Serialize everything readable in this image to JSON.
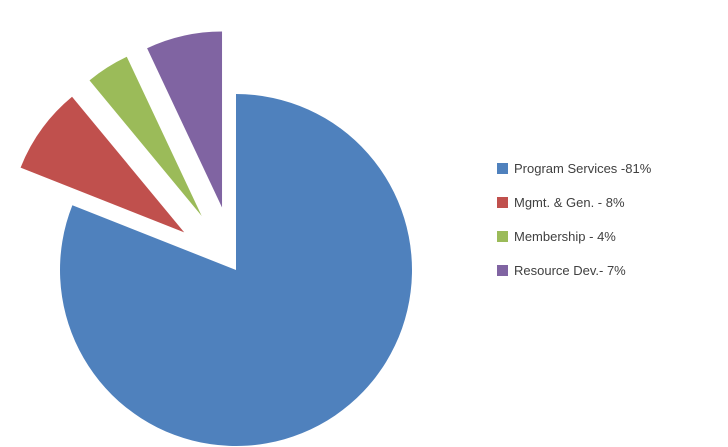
{
  "chart_data": {
    "type": "pie",
    "title": "",
    "slices": [
      {
        "label": "Program Services -81%",
        "value": 81,
        "color": "#4f81bd",
        "exploded": false
      },
      {
        "label": "Mgmt. & Gen. - 8%",
        "value": 8,
        "color": "#c0504d",
        "exploded": true
      },
      {
        "label": "Membership - 4%",
        "value": 4,
        "color": "#9bbb59",
        "exploded": true
      },
      {
        "label": "Resource Dev.- 7%",
        "value": 7,
        "color": "#8064a2",
        "exploded": true
      }
    ],
    "legend_position": "right"
  }
}
